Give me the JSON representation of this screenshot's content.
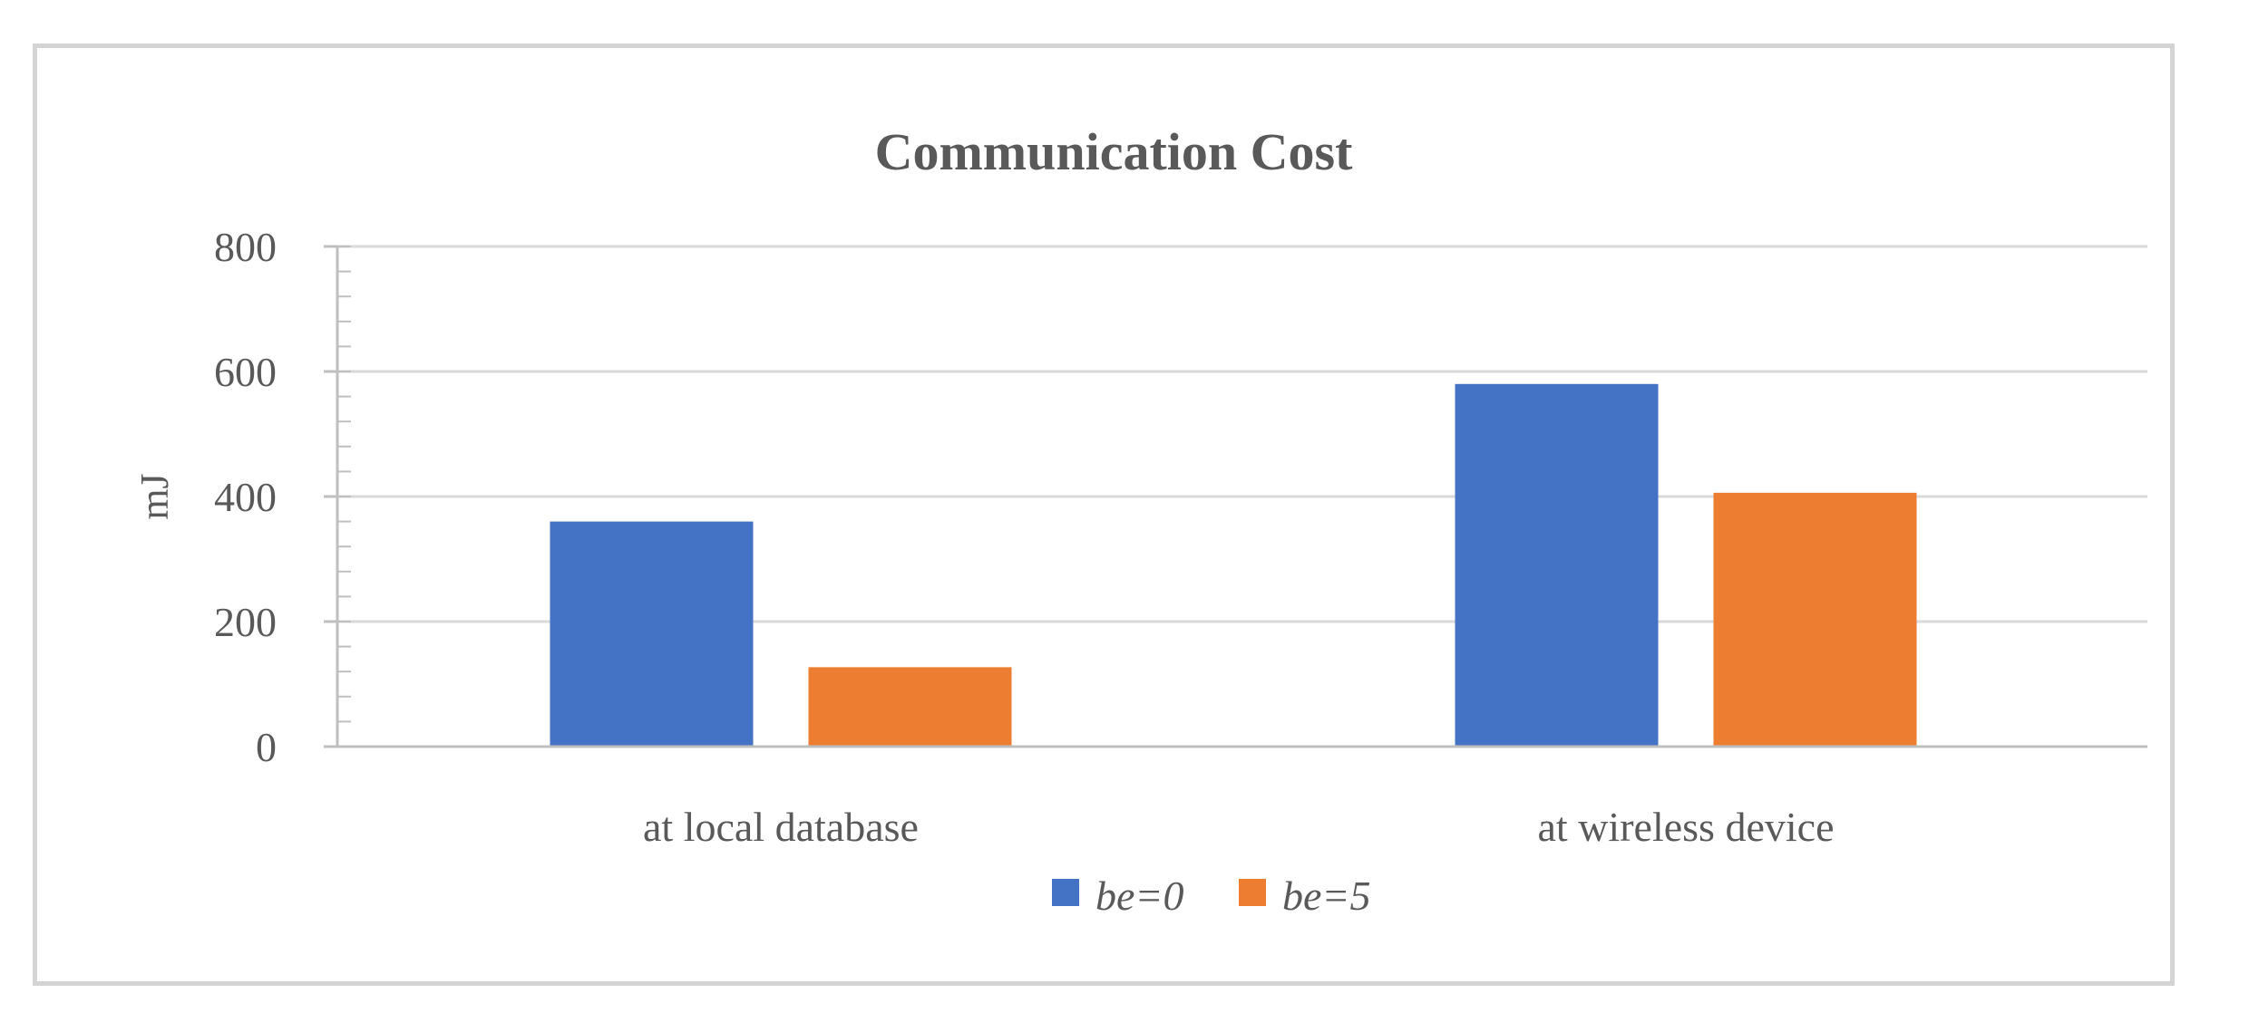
{
  "chart_data": {
    "type": "bar",
    "title": "Communication Cost",
    "xlabel": "",
    "ylabel": "mJ",
    "categories": [
      "at local database",
      "at wireless device"
    ],
    "series": [
      {
        "name": "be=0",
        "values": [
          360,
          580
        ],
        "color": "#4472c4"
      },
      {
        "name": "be=5",
        "values": [
          127,
          406
        ],
        "color": "#ed7d31"
      }
    ],
    "ylim": [
      0,
      800
    ],
    "yticks": [
      0,
      200,
      400,
      600,
      800
    ],
    "grid": true,
    "legend_position": "bottom"
  }
}
